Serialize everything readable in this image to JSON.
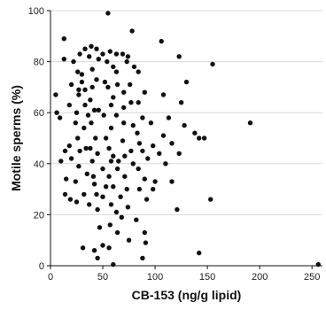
{
  "chart_data": {
    "type": "scatter",
    "title": "",
    "xlabel": "CB-153 (ng/g lipid)",
    "ylabel": "Motile sperms (%)",
    "xlim": [
      0,
      260
    ],
    "ylim": [
      0,
      100
    ],
    "xticks": [
      0,
      50,
      100,
      150,
      200,
      250
    ],
    "yticks": [
      0,
      20,
      40,
      60,
      80,
      100
    ],
    "grid": "horizontal",
    "marker_color": "#111111",
    "points": [
      [
        55,
        99
      ],
      [
        13,
        89
      ],
      [
        78,
        92
      ],
      [
        106,
        88
      ],
      [
        33,
        85
      ],
      [
        39,
        86
      ],
      [
        44,
        85
      ],
      [
        50,
        83
      ],
      [
        57,
        84
      ],
      [
        63,
        83
      ],
      [
        69,
        83
      ],
      [
        74,
        82
      ],
      [
        28,
        83
      ],
      [
        37,
        82
      ],
      [
        13,
        81
      ],
      [
        22,
        80
      ],
      [
        46,
        81
      ],
      [
        54,
        80
      ],
      [
        73,
        80
      ],
      [
        123,
        82
      ],
      [
        155,
        79
      ],
      [
        80,
        78
      ],
      [
        60,
        78
      ],
      [
        40,
        77
      ],
      [
        26,
        76
      ],
      [
        30,
        75
      ],
      [
        63,
        76
      ],
      [
        84,
        76
      ],
      [
        130,
        72
      ],
      [
        30,
        72
      ],
      [
        44,
        73
      ],
      [
        52,
        72
      ],
      [
        64,
        71
      ],
      [
        76,
        71
      ],
      [
        20,
        71
      ],
      [
        40,
        70
      ],
      [
        27,
        69
      ],
      [
        33,
        69
      ],
      [
        55,
        70
      ],
      [
        70,
        68
      ],
      [
        90,
        68
      ],
      [
        108,
        67
      ],
      [
        27,
        67
      ],
      [
        38,
        65
      ],
      [
        60,
        66
      ],
      [
        77,
        64
      ],
      [
        84,
        64
      ],
      [
        125,
        64
      ],
      [
        5,
        67
      ],
      [
        18,
        63
      ],
      [
        33,
        63
      ],
      [
        46,
        61
      ],
      [
        58,
        63
      ],
      [
        70,
        62
      ],
      [
        42,
        61
      ],
      [
        25,
        60
      ],
      [
        36,
        59
      ],
      [
        51,
        59
      ],
      [
        63,
        59
      ],
      [
        88,
        58
      ],
      [
        113,
        58
      ],
      [
        147,
        50
      ],
      [
        191,
        56
      ],
      [
        6,
        60
      ],
      [
        9,
        58
      ],
      [
        24,
        56
      ],
      [
        39,
        56
      ],
      [
        70,
        56
      ],
      [
        79,
        55
      ],
      [
        96,
        56
      ],
      [
        128,
        55
      ],
      [
        32,
        54
      ],
      [
        58,
        54
      ],
      [
        83,
        52
      ],
      [
        108,
        51
      ],
      [
        138,
        52
      ],
      [
        142,
        50
      ],
      [
        26,
        50
      ],
      [
        43,
        50
      ],
      [
        53,
        50
      ],
      [
        69,
        49
      ],
      [
        85,
        48
      ],
      [
        98,
        47
      ],
      [
        116,
        48
      ],
      [
        18,
        47
      ],
      [
        34,
        46
      ],
      [
        38,
        46
      ],
      [
        56,
        46
      ],
      [
        77,
        45
      ],
      [
        88,
        45
      ],
      [
        104,
        44
      ],
      [
        123,
        44
      ],
      [
        14,
        45
      ],
      [
        28,
        45
      ],
      [
        45,
        44
      ],
      [
        60,
        43
      ],
      [
        71,
        43
      ],
      [
        93,
        42
      ],
      [
        20,
        42
      ],
      [
        40,
        41
      ],
      [
        58,
        41
      ],
      [
        65,
        41
      ],
      [
        79,
        40
      ],
      [
        10,
        41
      ],
      [
        27,
        39
      ],
      [
        50,
        38
      ],
      [
        64,
        38
      ],
      [
        84,
        38
      ],
      [
        110,
        40
      ],
      [
        35,
        36
      ],
      [
        41,
        35
      ],
      [
        56,
        35
      ],
      [
        71,
        35
      ],
      [
        90,
        34
      ],
      [
        100,
        33
      ],
      [
        116,
        33
      ],
      [
        15,
        34
      ],
      [
        24,
        33
      ],
      [
        42,
        32
      ],
      [
        53,
        31
      ],
      [
        60,
        31
      ],
      [
        73,
        30
      ],
      [
        85,
        30
      ],
      [
        98,
        30
      ],
      [
        14,
        28
      ],
      [
        32,
        28
      ],
      [
        44,
        28
      ],
      [
        50,
        27
      ],
      [
        67,
        27
      ],
      [
        92,
        26
      ],
      [
        153,
        26
      ],
      [
        19,
        26
      ],
      [
        25,
        25
      ],
      [
        37,
        24
      ],
      [
        58,
        24
      ],
      [
        74,
        23
      ],
      [
        121,
        22
      ],
      [
        45,
        22
      ],
      [
        63,
        21
      ],
      [
        68,
        19
      ],
      [
        82,
        18
      ],
      [
        57,
        16
      ],
      [
        47,
        15
      ],
      [
        64,
        13
      ],
      [
        90,
        13
      ],
      [
        75,
        10
      ],
      [
        91,
        9
      ],
      [
        50,
        8
      ],
      [
        56,
        7
      ],
      [
        31,
        7
      ],
      [
        42,
        6
      ],
      [
        142,
        5
      ],
      [
        45,
        3
      ],
      [
        88,
        3
      ],
      [
        60,
        0.5
      ],
      [
        256,
        0.5
      ]
    ]
  }
}
